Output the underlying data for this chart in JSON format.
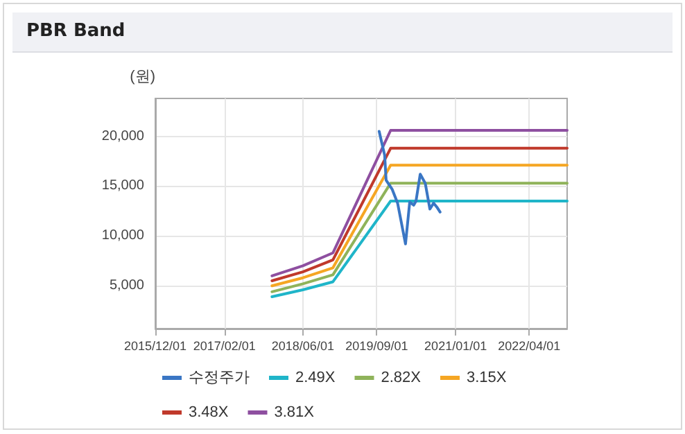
{
  "chart_data": {
    "type": "line",
    "title": "PBR Band",
    "ylabel": "(원)",
    "xlim": [
      "2015-12-01",
      "2022-11-22"
    ],
    "xticks": [
      {
        "value": "2015-12-01",
        "label": "2015/12/01"
      },
      {
        "value": "2017-02-01",
        "label": "2017/02/01"
      },
      {
        "value": "2018-06-01",
        "label": "2018/06/01"
      },
      {
        "value": "2019-09-01",
        "label": "2019/09/01"
      },
      {
        "value": "2021-01-01",
        "label": "2021/01/01"
      },
      {
        "value": "2022-04-01",
        "label": "2022/04/01"
      }
    ],
    "ylim": [
      700,
      23800
    ],
    "yticks": [
      {
        "value": 5000,
        "label": "5,000"
      },
      {
        "value": 10000,
        "label": "10,000"
      },
      {
        "value": 15000,
        "label": "15,000"
      },
      {
        "value": 20000,
        "label": "20,000"
      }
    ],
    "grid": true,
    "legend": "bottom",
    "marker": "none",
    "line_style": "solid",
    "series": [
      {
        "name": "수정주가",
        "color": "#3a76c4",
        "x": [
          "2019-09-16",
          "2019-09-30",
          "2019-10-20",
          "2019-10-29",
          "2019-12-05",
          "2020-01-08",
          "2020-02-26",
          "2020-03-23",
          "2020-04-17",
          "2020-05-01",
          "2020-05-27",
          "2020-06-27",
          "2020-07-26",
          "2020-08-18",
          "2020-09-07",
          "2020-09-27"
        ],
        "values": [
          20500,
          19500,
          18100,
          15600,
          14700,
          13300,
          9200,
          13400,
          13100,
          13500,
          16200,
          15300,
          12700,
          13300,
          12900,
          12400
        ]
      },
      {
        "name": "2.49X",
        "color": "#1fb5c9",
        "x": [
          "2017-11-22",
          "2018-06-01",
          "2018-12-04",
          "2019-11-26",
          "2022-11-22"
        ],
        "values": [
          3900,
          4600,
          5400,
          13500,
          13500
        ]
      },
      {
        "name": "2.82X",
        "color": "#8fb35a",
        "x": [
          "2017-11-22",
          "2018-06-01",
          "2018-12-04",
          "2019-11-26",
          "2022-11-22"
        ],
        "values": [
          4400,
          5200,
          6100,
          15300,
          15300
        ]
      },
      {
        "name": "3.15X",
        "color": "#f5a623",
        "x": [
          "2017-11-22",
          "2018-06-01",
          "2018-12-04",
          "2019-11-26",
          "2022-11-22"
        ],
        "values": [
          5000,
          5800,
          6800,
          17100,
          17100
        ]
      },
      {
        "name": "3.48X",
        "color": "#c0392b",
        "x": [
          "2017-11-22",
          "2018-06-01",
          "2018-12-04",
          "2019-11-26",
          "2022-11-22"
        ],
        "values": [
          5500,
          6400,
          7600,
          18800,
          18800
        ]
      },
      {
        "name": "3.81X",
        "color": "#8e4fa0",
        "x": [
          "2017-11-22",
          "2018-06-01",
          "2018-12-04",
          "2019-11-26",
          "2022-11-22"
        ],
        "values": [
          6000,
          7000,
          8300,
          20600,
          20600
        ]
      }
    ]
  }
}
